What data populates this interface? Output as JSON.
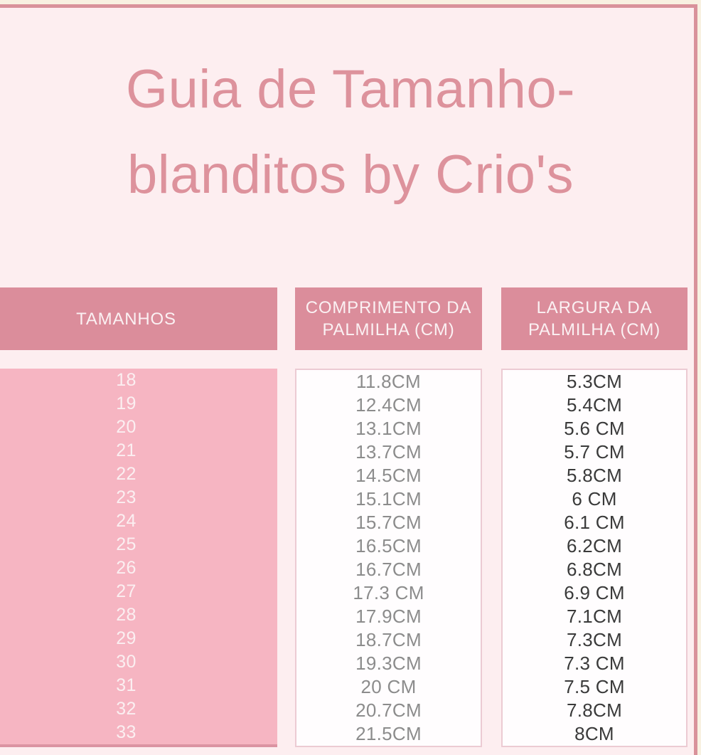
{
  "title": {
    "line1": "Guia de Tamanho-",
    "line2": "blanditos by Crio's"
  },
  "chart_data": {
    "type": "table",
    "title": "Guia de Tamanho- blanditos by Crio's",
    "columns": [
      "TAMANHOS",
      "COMPRIMENTO DA PALMILHA (CM)",
      "LARGURA DA PALMILHA (CM)"
    ],
    "rows": [
      [
        "18",
        "11.8CM",
        "5.3CM"
      ],
      [
        "19",
        "12.4CM",
        "5.4CM"
      ],
      [
        "20",
        "13.1CM",
        "5.6 CM"
      ],
      [
        "21",
        "13.7CM",
        "5.7 CM"
      ],
      [
        "22",
        "14.5CM",
        "5.8CM"
      ],
      [
        "23",
        "15.1CM",
        "6 CM"
      ],
      [
        "24",
        "15.7CM",
        "6.1 CM"
      ],
      [
        "25",
        "16.5CM",
        "6.2CM"
      ],
      [
        "26",
        "16.7CM",
        "6.8CM"
      ],
      [
        "27",
        "17.3 CM",
        "6.9 CM"
      ],
      [
        "28",
        "17.9CM",
        "7.1CM"
      ],
      [
        "29",
        "18.7CM",
        "7.3CM"
      ],
      [
        "30",
        "19.3CM",
        "7.3 CM"
      ],
      [
        "31",
        "20 CM",
        "7.5 CM"
      ],
      [
        "32",
        "20.7CM",
        "7.8CM"
      ],
      [
        "33",
        "21.5CM",
        "8CM"
      ]
    ],
    "colors": {
      "header_bg": "#db8d9b",
      "sizes_column_bg": "#f6b5c2",
      "page_bg": "#fdeef0",
      "outer_bg": "#f8f1e1",
      "frame_border": "#d9929b",
      "title_text": "#dd929c",
      "header_text": "#fbf1f3",
      "length_text": "#8c8c8c",
      "width_text": "#3a3a3a"
    }
  }
}
